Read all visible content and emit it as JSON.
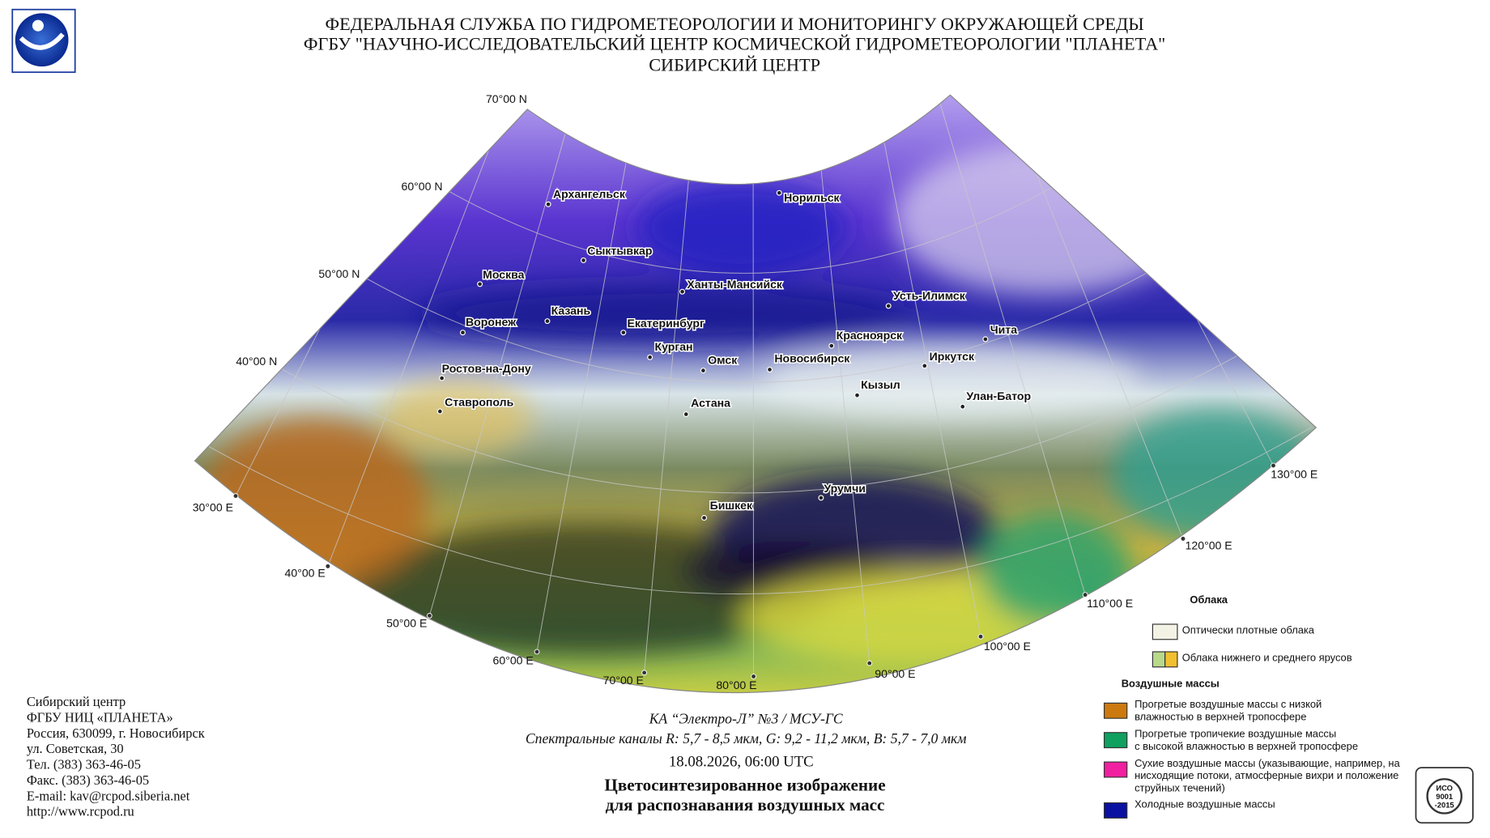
{
  "header": {
    "lines": [
      "ФЕДЕРАЛЬНАЯ СЛУЖБА ПО ГИДРОМЕТЕОРОЛОГИИ И МОНИТОРИНГУ ОКРУЖАЮЩЕЙ СРЕДЫ",
      "ФГБУ \"НАУЧНО-ИССЛЕДОВАТЕЛЬСКИЙ ЦЕНТР КОСМИЧЕСКОЙ ГИДРОМЕТЕОРОЛОГИИ \"ПЛАНЕТА\"",
      "СИБИРСКИЙ ЦЕНТР"
    ]
  },
  "map": {
    "lat_labels": [
      "70°00 N",
      "60°00 N",
      "50°00 N",
      "40°00 N"
    ],
    "lon_labels": [
      "30°00 E",
      "40°00 E",
      "50°00 E",
      "60°00 E",
      "70°00 E",
      "80°00 E",
      "90°00 E",
      "100°00 E",
      "110°00 E",
      "120°00 E",
      "130°00 E"
    ],
    "cities": [
      "Архангельск",
      "Сыктывкар",
      "Москва",
      "Казань",
      "Воронеж",
      "Ростов-на-Дону",
      "Ставрополь",
      "Екатеринбург",
      "Курган",
      "Омск",
      "Ханты-Мансийск",
      "Норильск",
      "Новосибирск",
      "Астана",
      "Красноярск",
      "Усть-Илимск",
      "Иркутск",
      "Чита",
      "Кызыл",
      "Улан-Батор",
      "Урумчи",
      "Бишкек"
    ]
  },
  "legend": {
    "clouds_title": "Облака",
    "clouds": [
      {
        "colors": [
          "#f4f2e4"
        ],
        "lines": [
          "Оптически плотные облака"
        ]
      },
      {
        "colors": [
          "#b8d88a",
          "#f0c030"
        ],
        "lines": [
          "Облака нижнего и среднего ярусов"
        ]
      }
    ],
    "air_title": "Воздушные массы",
    "air": [
      {
        "colors": [
          "#cc7a10"
        ],
        "lines": [
          "Прогретые воздушные массы с низкой",
          "влажностью в верхней тропосфере"
        ]
      },
      {
        "colors": [
          "#10a060"
        ],
        "lines": [
          "Прогретые тропичекие воздушные массы",
          "с высокой влажностью в верхней тропосфере"
        ]
      },
      {
        "colors": [
          "#f020a0"
        ],
        "lines": [
          "Сухие воздушные массы (указывающие, например, на",
          "нисходящие потоки, атмосферные вихри и положение",
          "струйных течений)"
        ]
      },
      {
        "colors": [
          "#0a10a0"
        ],
        "lines": [
          "Холодные воздушные массы"
        ]
      }
    ]
  },
  "caption": {
    "satellite": "КА “Электро-Л” №3 / МСУ-ГС",
    "channels": "Спектральные каналы R: 5,7 - 8,5 мкм, G: 9,2 - 11,2 мкм, B: 5,7 - 7,0 мкм",
    "datetime": "18.08.2026, 06:00 UTC",
    "title_lines": [
      "Цветосинтезированное изображение",
      "для распознавания воздушных масс"
    ]
  },
  "contact": {
    "lines": [
      "Сибирский центр",
      "ФГБУ НИЦ «ПЛАНЕТА»",
      "Россия, 630099, г. Новосибирск",
      "ул. Советская, 30",
      "Тел. (383) 363-46-05",
      "Факс. (383) 363-46-05",
      "E-mail: kav@rcpod.siberia.net",
      "http://www.rcpod.ru"
    ]
  },
  "certificate": {
    "lines": [
      "ИСО",
      "9001",
      "-2015"
    ]
  }
}
